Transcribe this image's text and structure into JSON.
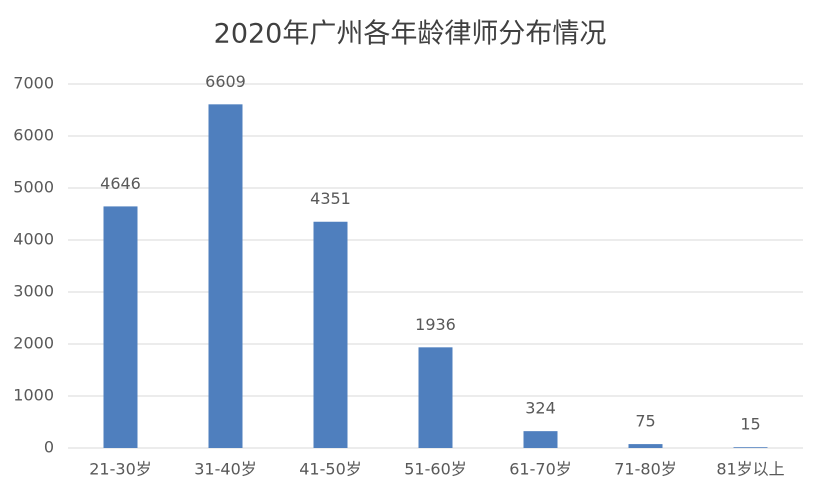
{
  "chart_data": {
    "type": "bar",
    "title": "2020年广州各年龄律师分布情况",
    "categories": [
      "21-30岁",
      "31-40岁",
      "41-50岁",
      "51-60岁",
      "61-70岁",
      "71-80岁",
      "81岁以上"
    ],
    "values": [
      4646,
      6609,
      4351,
      1936,
      324,
      75,
      15
    ],
    "color": "#4f7fbe",
    "ylim": [
      0,
      7000
    ],
    "yticks": [
      0,
      1000,
      2000,
      3000,
      4000,
      5000,
      6000,
      7000
    ],
    "grid": true
  }
}
